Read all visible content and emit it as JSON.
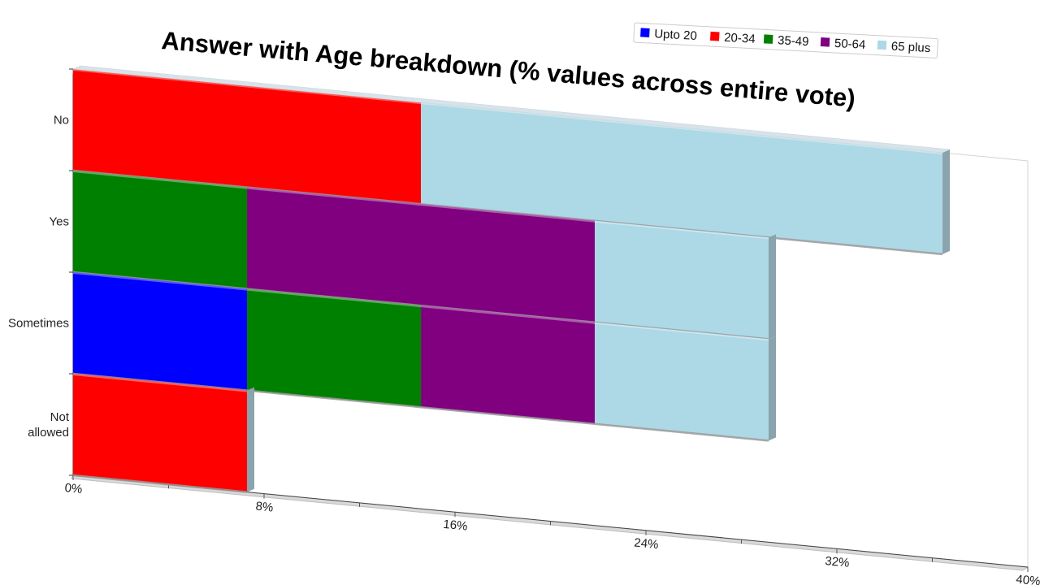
{
  "chart_data": {
    "type": "bar",
    "orientation": "horizontal",
    "stacked": true,
    "title": "Answer with Age breakdown (% values across entire vote)",
    "xlabel": "",
    "ylabel": "",
    "xlim": [
      0,
      40
    ],
    "x_ticks": [
      "0%",
      "8%",
      "16%",
      "24%",
      "32%",
      "40%"
    ],
    "categories": [
      "No",
      "Yes",
      "Sometimes",
      "Not allowed"
    ],
    "series": [
      {
        "name": "Upto 20",
        "color": "#0000ff",
        "values": [
          0,
          0,
          8,
          0
        ]
      },
      {
        "name": "20-34",
        "color": "#ff0000",
        "values": [
          16,
          0,
          0,
          8
        ]
      },
      {
        "name": "35-49",
        "color": "#008000",
        "values": [
          0,
          8,
          8,
          0
        ]
      },
      {
        "name": "50-64",
        "color": "#800080",
        "values": [
          0,
          16,
          8,
          0
        ]
      },
      {
        "name": "65 plus",
        "color": "#add8e6",
        "values": [
          24,
          8,
          8,
          0
        ]
      }
    ],
    "legend_position": "top-right",
    "grid": false,
    "style": "3d-perspective"
  }
}
